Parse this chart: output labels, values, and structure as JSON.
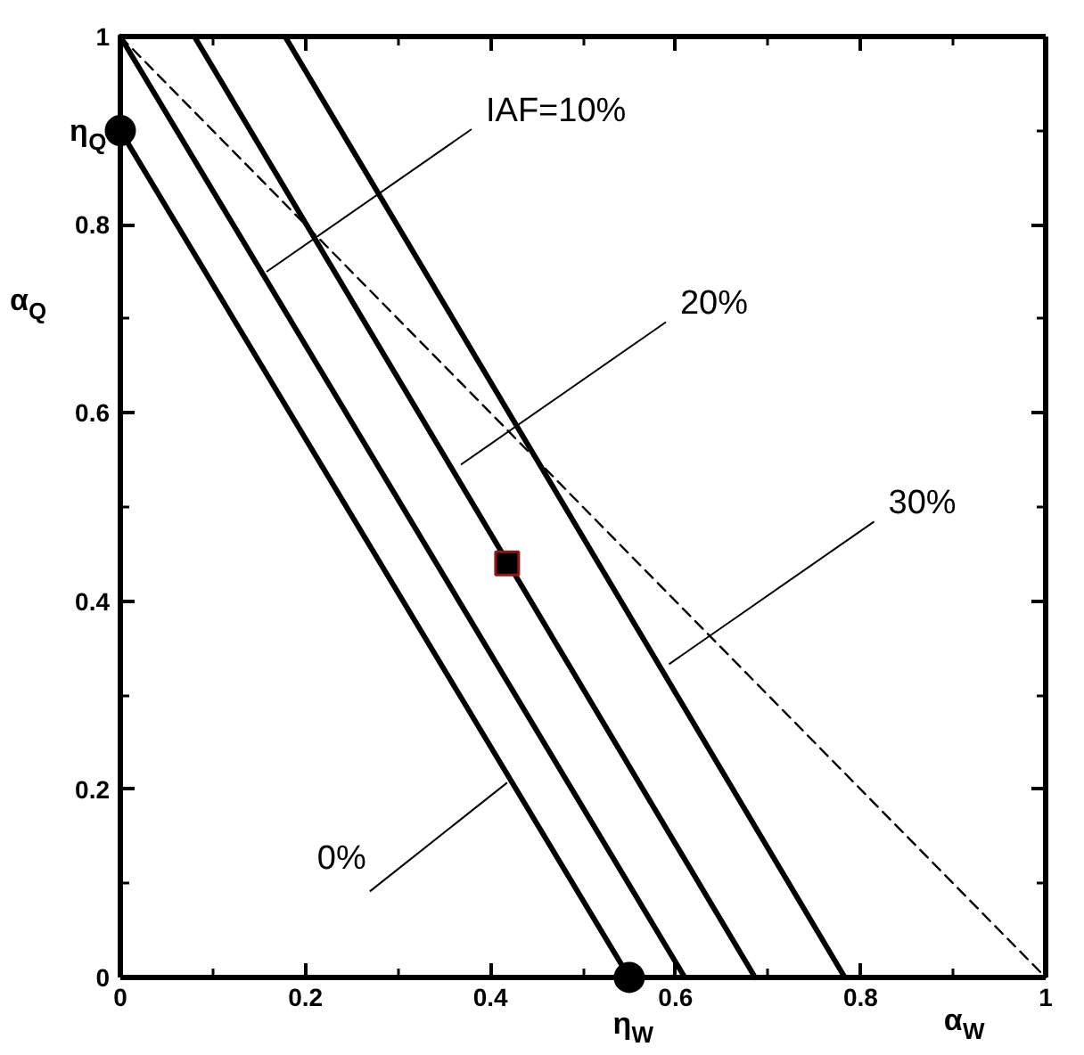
{
  "chart_data": {
    "type": "line",
    "xlabel": "α$_{W}$",
    "ylabel": "α$_{Q}$",
    "xlim": [
      0,
      1
    ],
    "ylim": [
      0,
      1
    ],
    "xticks": [
      0,
      0.2,
      0.4,
      0.6,
      0.8,
      1,
      {
        "value": 0.1,
        "label": null
      },
      {
        "value": 0.3,
        "label": null
      },
      {
        "value": 0.5,
        "label": null
      },
      {
        "value": 0.7,
        "label": null
      },
      {
        "value": 0.9,
        "label": null
      }
    ],
    "yticks": [
      0,
      0.2,
      0.4,
      0.6,
      0.8,
      1,
      {
        "value": 0.1,
        "label": null
      },
      {
        "value": 0.3,
        "label": null
      },
      {
        "value": 0.5,
        "label": null
      },
      {
        "value": 0.7,
        "label": null
      },
      {
        "value": 0.9,
        "label": null
      }
    ],
    "grid": false,
    "series": [
      {
        "color": "#000000",
        "x": [
          0,
          0.55
        ],
        "values": [
          0.9,
          0
        ]
      },
      {
        "color": "#000000",
        "x": [
          0,
          0.61
        ],
        "values": [
          1,
          0
        ]
      },
      {
        "color": "#000000",
        "x": [
          0.08,
          0.686
        ],
        "values": [
          1,
          0
        ]
      },
      {
        "color": "#000000",
        "x": [
          0.178,
          0.783
        ],
        "values": [
          1,
          0
        ]
      },
      {
        "color": "#000000",
        "x": [
          0,
          1
        ],
        "values": [
          1,
          0
        ],
        "line_style": "dashed"
      },
      {
        "type": "scatter",
        "color": "#000000",
        "x": [
          0,
          0.55
        ],
        "values": [
          0.9,
          0
        ],
        "marker": "circle"
      },
      {
        "type": "scatter",
        "color": "#000000",
        "x": [
          0.418
        ],
        "values": [
          0.44
        ],
        "marker": "square"
      }
    ],
    "annotations": [
      {
        "text": "IAF=10%",
        "x": 0.158,
        "y": 0.75
      },
      {
        "text": "20%",
        "x": 0.368,
        "y": 0.545
      },
      {
        "text": "30%",
        "x": 0.593,
        "y": 0.333
      },
      {
        "text": "0%",
        "x": 0.418,
        "y": 0.207
      },
      {
        "text": "η$_{Q}$",
        "x": 0,
        "y": 0.9
      },
      {
        "text": "η$_{W}$",
        "x": 0.55,
        "y": 0
      }
    ]
  }
}
